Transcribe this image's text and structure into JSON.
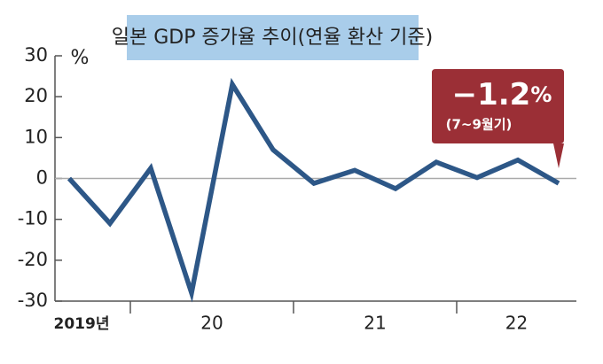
{
  "chart_data": {
    "type": "line",
    "title": "일본 GDP 증가율 추이(연율 환산 기준)",
    "y_unit": "%",
    "categories": [
      "2019년",
      null,
      "20",
      null,
      null,
      null,
      "21",
      null,
      null,
      null,
      "22",
      null,
      null
    ],
    "series": [
      {
        "name": "GDP",
        "color": "#2d5787",
        "values": [
          0,
          -11,
          2.5,
          -28,
          23,
          7,
          -1.2,
          2,
          -2.5,
          4,
          0.2,
          4.5,
          -1.2
        ]
      }
    ],
    "ylim": [
      -30,
      30
    ],
    "yticks": [
      30,
      20,
      10,
      0,
      -10,
      -20,
      -30
    ],
    "annotation": {
      "text": "−1.2",
      "unit": "%",
      "subtext": "(7~9월기)",
      "color": "#9b2f36"
    }
  }
}
